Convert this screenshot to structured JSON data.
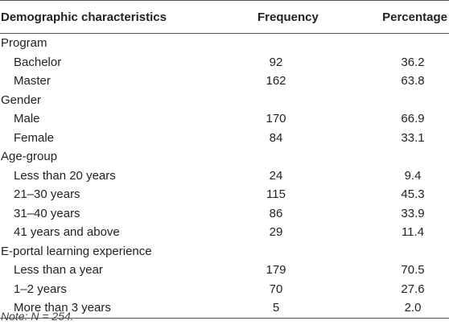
{
  "table": {
    "headers": {
      "characteristic": "Demographic characteristics",
      "frequency": "Frequency",
      "percentage": "Percentage"
    },
    "groups": [
      {
        "label": "Program",
        "rows": [
          {
            "label": "Bachelor",
            "frequency": "92",
            "percentage": "36.2"
          },
          {
            "label": "Master",
            "frequency": "162",
            "percentage": "63.8"
          }
        ]
      },
      {
        "label": "Gender",
        "rows": [
          {
            "label": "Male",
            "frequency": "170",
            "percentage": "66.9"
          },
          {
            "label": "Female",
            "frequency": "84",
            "percentage": "33.1"
          }
        ]
      },
      {
        "label": "Age-group",
        "rows": [
          {
            "label": "Less than 20 years",
            "frequency": "24",
            "percentage": "9.4"
          },
          {
            "label": "21–30 years",
            "frequency": "115",
            "percentage": "45.3"
          },
          {
            "label": "31–40 years",
            "frequency": "86",
            "percentage": "33.9"
          },
          {
            "label": "41 years and above",
            "frequency": "29",
            "percentage": "11.4"
          }
        ]
      },
      {
        "label": "E-portal learning experience",
        "rows": [
          {
            "label": "Less than a year",
            "frequency": "179",
            "percentage": "70.5"
          },
          {
            "label": "1–2 years",
            "frequency": "70",
            "percentage": "27.6"
          },
          {
            "label": "More than 3 years",
            "frequency": "5",
            "percentage": "2.0"
          }
        ]
      }
    ]
  },
  "note": "Note: N = 254."
}
